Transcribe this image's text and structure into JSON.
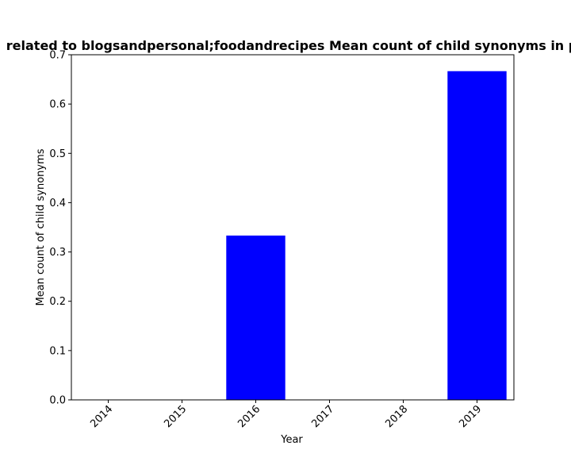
{
  "chart_data": {
    "type": "bar",
    "title": "related to blogsandpersonal;foodandrecipes Mean count of child synonyms in p",
    "xlabel": "Year",
    "ylabel": "Mean count of child synonyms",
    "categories": [
      "2014",
      "2015",
      "2016",
      "2017",
      "2018",
      "2019"
    ],
    "values": [
      0,
      0,
      0.3333,
      0,
      0,
      0.6667
    ],
    "ylim": [
      0,
      0.7
    ],
    "yticks": [
      "0.0",
      "0.1",
      "0.2",
      "0.3",
      "0.4",
      "0.5",
      "0.6",
      "0.7"
    ],
    "bar_color": "#0000ff",
    "grid": false,
    "legend": "none"
  }
}
